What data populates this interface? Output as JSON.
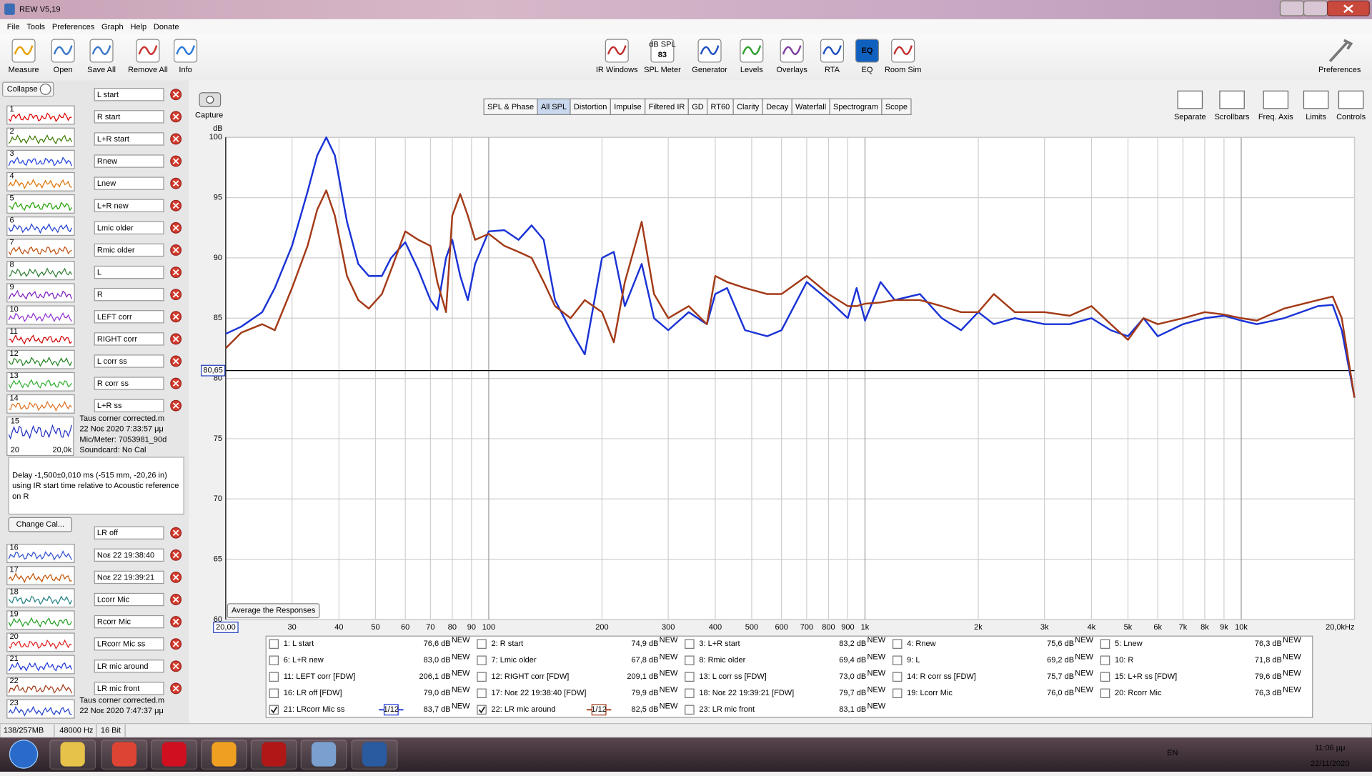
{
  "window": {
    "title": "REW V5,19"
  },
  "menu": [
    "File",
    "Tools",
    "Preferences",
    "Graph",
    "Help",
    "Donate"
  ],
  "toolbar_left": [
    "Measure",
    "Open",
    "Save All",
    "Remove All",
    "Info"
  ],
  "toolbar_center": [
    "IR Windows",
    "SPL Meter",
    "Generator",
    "Levels",
    "Overlays",
    "RTA",
    "EQ",
    "Room Sim"
  ],
  "spl_meter_icon": {
    "unit": "dB SPL",
    "value": "83"
  },
  "eq_icon_text": "EQ",
  "toolbar_right": "Preferences",
  "collapse": "Collapse",
  "measurements": [
    {
      "number": "1",
      "name": "L start"
    },
    {
      "number": "2",
      "name": "R start"
    },
    {
      "number": "3",
      "name": "L+R start"
    },
    {
      "number": "4",
      "name": "Rnew"
    },
    {
      "number": "5",
      "name": "Lnew"
    },
    {
      "number": "6",
      "name": "L+R new"
    },
    {
      "number": "7",
      "name": "Lmic older"
    },
    {
      "number": "8",
      "name": "Rmic older"
    },
    {
      "number": "9",
      "name": "L"
    },
    {
      "number": "10",
      "name": "R"
    },
    {
      "number": "11",
      "name": "LEFT corr"
    },
    {
      "number": "12",
      "name": "RIGHT corr"
    },
    {
      "number": "13",
      "name": "L corr ss"
    },
    {
      "number": "14",
      "name": "R corr ss"
    },
    {
      "number": "15",
      "name": "L+R ss",
      "expanded": true,
      "info": {
        "lines": [
          "Taus corner corrected.m",
          "22 Νοε 2020 7:33:57 μμ",
          "Mic/Meter: 7053981_90d",
          "Soundcard: No Cal"
        ],
        "thumb_min": "20",
        "thumb_max": "20,0k",
        "delay": [
          "Delay -1,500±0,010 ms (-515 mm, -20,26 in)",
          "using IR start time relative to Acoustic reference",
          "on  R"
        ],
        "button": "Change Cal..."
      }
    },
    {
      "number": "16",
      "name": "LR off"
    },
    {
      "number": "17",
      "name": "Νοε 22 19:38:40"
    },
    {
      "number": "18",
      "name": "Νοε 22 19:39:21"
    },
    {
      "number": "19",
      "name": "Lcorr Mic"
    },
    {
      "number": "20",
      "name": "Rcorr Mic"
    },
    {
      "number": "21",
      "name": "LRcorr Mic ss"
    },
    {
      "number": "22",
      "name": "LR mic around"
    },
    {
      "number": "23",
      "name": "LR mic front",
      "info": {
        "lines": [
          "Taus corner corrected.m",
          "22 Νοε 2020 7:47:37 μμ"
        ]
      }
    }
  ],
  "capture": "Capture",
  "tabs": [
    {
      "label": "SPL & Phase"
    },
    {
      "label": "All SPL",
      "active": true
    },
    {
      "label": "Distortion"
    },
    {
      "label": "Impulse"
    },
    {
      "label": "Filtered IR"
    },
    {
      "label": "GD"
    },
    {
      "label": "RT60"
    },
    {
      "label": "Clarity"
    },
    {
      "label": "Decay"
    },
    {
      "label": "Waterfall"
    },
    {
      "label": "Spectrogram"
    },
    {
      "label": "Scope"
    }
  ],
  "graph_tools": [
    "Separate",
    "Scrollbars",
    "Freq. Axis",
    "Limits",
    "Controls"
  ],
  "average_button": "Average the Responses",
  "chart_data": {
    "type": "line",
    "ylabel": "dB",
    "log_x": true,
    "grid": true,
    "xlim": [
      20,
      20000
    ],
    "ylim": [
      60,
      100
    ],
    "yticks": [
      60,
      65,
      70,
      75,
      80,
      85,
      90,
      95,
      100
    ],
    "xticks": [
      30,
      40,
      50,
      60,
      70,
      80,
      90,
      100,
      200,
      300,
      400,
      500,
      600,
      700,
      800,
      900,
      {
        "value": 1000,
        "label": "1k"
      },
      {
        "value": 2000,
        "label": "2k"
      },
      {
        "value": 3000,
        "label": "3k"
      },
      {
        "value": 4000,
        "label": "4k"
      },
      {
        "value": 5000,
        "label": "5k"
      },
      {
        "value": 6000,
        "label": "6k"
      },
      {
        "value": 7000,
        "label": "7k"
      },
      {
        "value": 8000,
        "label": "8k"
      },
      {
        "value": 9000,
        "label": "9k"
      },
      {
        "value": 10000,
        "label": "10k"
      },
      {
        "value": 20000,
        "label": "20,0kHz"
      }
    ],
    "cursor": {
      "x": {
        "value": 20,
        "label": "20,00"
      },
      "y": {
        "value": 80.65,
        "label": "80,65"
      }
    },
    "x": [
      20,
      22,
      25,
      27,
      30,
      33,
      35,
      37,
      39,
      42,
      45,
      48,
      52,
      55,
      60,
      65,
      70,
      73,
      77,
      80,
      84,
      88,
      92,
      100,
      110,
      120,
      130,
      140,
      150,
      165,
      180,
      200,
      215,
      230,
      255,
      275,
      300,
      340,
      380,
      400,
      430,
      480,
      550,
      600,
      700,
      800,
      900,
      950,
      1000,
      1100,
      1200,
      1400,
      1600,
      1800,
      2000,
      2200,
      2500,
      3000,
      3500,
      4000,
      4500,
      5000,
      5500,
      6000,
      7000,
      8000,
      9000,
      10000,
      11000,
      13000,
      16000,
      17500,
      18500,
      20000
    ],
    "series": [
      {
        "color": "#1a33d6",
        "values": [
          83.7,
          84.3,
          85.5,
          87.5,
          91,
          95.5,
          98.5,
          100,
          98.5,
          93,
          89.5,
          88.5,
          88.5,
          90,
          91.3,
          89,
          86.5,
          85.7,
          90,
          91.5,
          88.5,
          86.5,
          89.5,
          92.2,
          92.3,
          91.5,
          92.7,
          91.5,
          86.5,
          84,
          82,
          90,
          90.5,
          86,
          89.5,
          85,
          84,
          85.5,
          84.5,
          87,
          87.5,
          84,
          83.5,
          84,
          88,
          86.5,
          85,
          87.5,
          84.8,
          88,
          86.5,
          87,
          85,
          84,
          85.5,
          84.5,
          85,
          84.5,
          84.5,
          85,
          84,
          83.5,
          85,
          83.5,
          84.5,
          85,
          85.2,
          84.8,
          84.5,
          85,
          86,
          86.1,
          84,
          78.4
        ]
      },
      {
        "color": "#a33a17",
        "values": [
          82.5,
          83.8,
          84.5,
          84,
          87.5,
          91,
          94,
          95.6,
          93.5,
          88.5,
          86.5,
          85.8,
          87,
          89,
          92.2,
          91.5,
          91,
          88,
          85.5,
          93.5,
          95.3,
          93.5,
          91.5,
          92,
          91,
          90.5,
          90,
          88,
          86,
          85,
          86.5,
          85.5,
          83,
          88,
          93,
          87,
          85,
          86,
          84.5,
          88.5,
          88,
          87.5,
          87,
          87,
          88.5,
          87,
          86,
          86,
          86.2,
          86.3,
          86.5,
          86.5,
          86,
          85.5,
          85.5,
          87,
          85.5,
          85.5,
          85.2,
          86,
          84.5,
          83.2,
          85,
          84.5,
          85,
          85.5,
          85.3,
          85,
          84.8,
          85.8,
          86.5,
          86.8,
          85,
          78.4
        ]
      }
    ]
  },
  "legend": {
    "new_badge": "NEW",
    "entries": [
      {
        "label": "1: L start",
        "level": "76,6 dB",
        "color": "#e00000"
      },
      {
        "label": "2: R start",
        "level": "74,9 dB",
        "color": "#3a7a00"
      },
      {
        "label": "3: L+R start",
        "level": "83,2 dB",
        "color": "#2040e0"
      },
      {
        "label": "4: Rnew",
        "level": "75,6 dB",
        "color": "#e07000"
      },
      {
        "label": "5: Lnew",
        "level": "76,3 dB",
        "color": "#20a000"
      },
      {
        "label": "6: L+R new",
        "level": "83,0 dB",
        "color": "#2040d0"
      },
      {
        "label": "7: Lmic older",
        "level": "67,8 dB",
        "color": "#c05010"
      },
      {
        "label": "8: Rmic older",
        "level": "69,4 dB",
        "color": "#2e7d32"
      },
      {
        "label": "9: L",
        "level": "69,2 dB",
        "color": "#8020c0"
      },
      {
        "label": "10: R",
        "level": "71,8 dB",
        "color": "#9030d0"
      },
      {
        "label": "11: LEFT corr [FDW]",
        "level": "206,1 dB",
        "color": "#d00000"
      },
      {
        "label": "12: RIGHT corr [FDW]",
        "level": "209,1 dB",
        "color": "#208020"
      },
      {
        "label": "13: L corr ss [FDW]",
        "level": "73,0 dB",
        "color": "#30b030"
      },
      {
        "label": "14: R corr ss [FDW]",
        "level": "75,7 dB",
        "color": "#e07020"
      },
      {
        "label": "15: L+R ss [FDW]",
        "level": "79,6 dB",
        "color": "#2030c0"
      },
      {
        "label": "16: LR off [FDW]",
        "level": "79,0 dB",
        "color": "#3050d0"
      },
      {
        "label": "17: Νοε 22 19:38:40 [FDW]",
        "level": "79,9 dB",
        "color": "#c05000"
      },
      {
        "label": "18: Νοε 22 19:39:21 [FDW]",
        "level": "79,7 dB",
        "color": "#208080"
      },
      {
        "label": "19: Lcorr Mic",
        "level": "76,0 dB",
        "color": "#20a020"
      },
      {
        "label": "20: Rcorr Mic",
        "level": "76,3 dB",
        "color": "#e02020"
      },
      {
        "label": "21: LRcorr Mic ss",
        "level": "83,7 dB",
        "color": "#1a33d6",
        "checked": true,
        "smoothing": "1/12"
      },
      {
        "label": "22: LR mic around",
        "level": "82,5 dB",
        "color": "#a33a17",
        "checked": true,
        "smoothing": "1/12"
      },
      {
        "label": "23: LR mic front",
        "level": "83,1 dB",
        "color": "#2040d0"
      }
    ]
  },
  "status": [
    "138/257MB",
    "48000 Hz",
    "16 Bit"
  ],
  "taskbar": {
    "language": "EN",
    "time": "11:06 μμ",
    "date": "22/11/2020"
  }
}
